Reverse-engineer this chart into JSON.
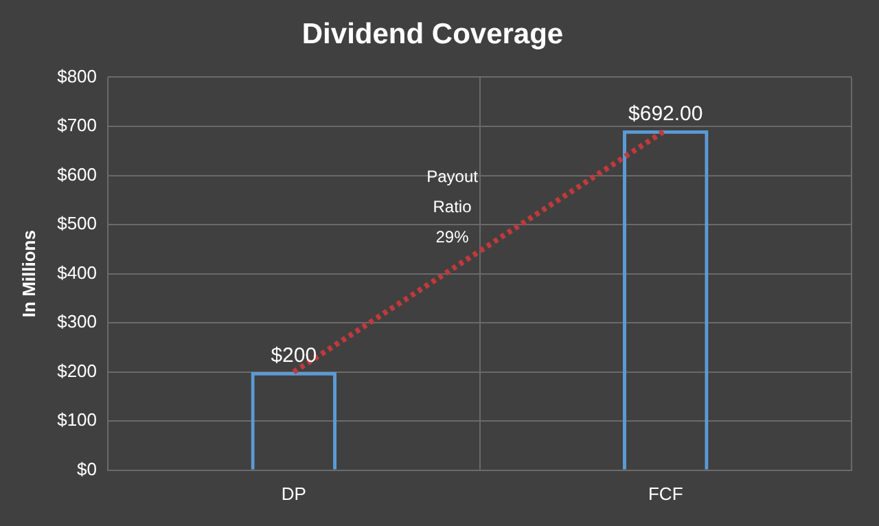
{
  "chart_data": {
    "type": "bar",
    "title": "Dividend Coverage",
    "ylabel": "In Millions",
    "categories": [
      "DP",
      "FCF"
    ],
    "series": [
      {
        "color": "#5b9bd5",
        "values": [
          200,
          692
        ],
        "value_labels": [
          "$200",
          "$692.00"
        ]
      },
      {
        "type": "line",
        "color": "#c0393b",
        "values": [
          200,
          692
        ],
        "line_style": "dotted",
        "marker": "none"
      }
    ],
    "ylim": [
      0,
      800
    ],
    "yticks": [
      {
        "value": 0,
        "label": "$0"
      },
      {
        "value": 100,
        "label": "$100"
      },
      {
        "value": 200,
        "label": "$200"
      },
      {
        "value": 300,
        "label": "$300"
      },
      {
        "value": 400,
        "label": "$400"
      },
      {
        "value": 500,
        "label": "$500"
      },
      {
        "value": 600,
        "label": "$600"
      },
      {
        "value": 700,
        "label": "$700"
      },
      {
        "value": 800,
        "label": "$800"
      }
    ],
    "annotations": [
      "Payout\nRatio\n29%"
    ],
    "grid": true,
    "legend": false
  }
}
